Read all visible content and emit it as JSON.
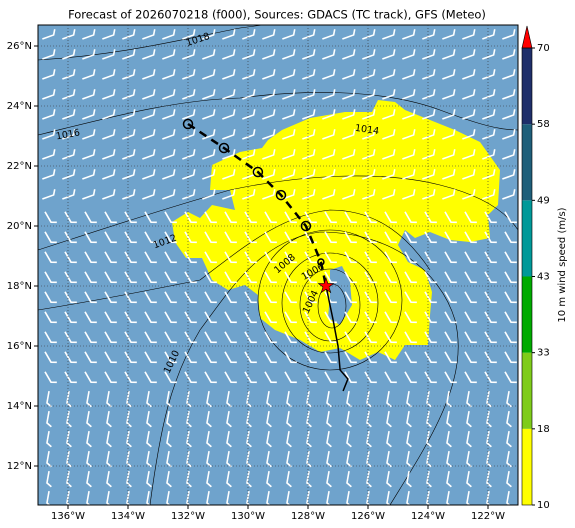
{
  "chart_data": {
    "type": "map",
    "title": "Forecast of 2026070218 (f000), Sources: GDACS (TC track), GFS (Meteo)",
    "xlim": [
      -137,
      -121
    ],
    "ylim": [
      10.7,
      26.7
    ],
    "xticks": [
      {
        "value": -136,
        "label": "136°W"
      },
      {
        "value": -134,
        "label": "134°W"
      },
      {
        "value": -132,
        "label": "132°W"
      },
      {
        "value": -130,
        "label": "130°W"
      },
      {
        "value": -128,
        "label": "128°W"
      },
      {
        "value": -126,
        "label": "126°W"
      },
      {
        "value": -124,
        "label": "124°W"
      },
      {
        "value": -122,
        "label": "122°W"
      }
    ],
    "yticks": [
      {
        "value": 12,
        "label": "12°N"
      },
      {
        "value": 14,
        "label": "14°N"
      },
      {
        "value": 16,
        "label": "16°N"
      },
      {
        "value": 18,
        "label": "18°N"
      },
      {
        "value": 20,
        "label": "20°N"
      },
      {
        "value": 22,
        "label": "22°N"
      },
      {
        "value": 24,
        "label": "24°N"
      },
      {
        "value": 26,
        "label": "26°N"
      }
    ],
    "grid": true,
    "track": {
      "lon": [
        -132.0,
        -130.8,
        -129.67,
        -128.9,
        -128.07,
        -127.57
      ],
      "lat": [
        23.4,
        22.6,
        21.8,
        21.03,
        20.0,
        18.8
      ],
      "color": "#000000"
    },
    "current_position": {
      "lon": -127.4,
      "lat": 18.0,
      "color": "#ff0000"
    },
    "forecast_track": {
      "lon": [
        -127.4,
        -127.17,
        -127.0,
        -126.93,
        -126.67,
        -126.83
      ],
      "lat": [
        18.0,
        16.9,
        16.0,
        15.2,
        14.9,
        14.5
      ],
      "color": "#000000"
    },
    "isobar_labels": [
      "1018",
      "1016",
      "1014",
      "1012",
      "1010",
      "1008",
      "1006",
      "1004"
    ],
    "colorbar": {
      "label": "10 m wind speed (m/s)",
      "levels": [
        10,
        18,
        33,
        43,
        49,
        58,
        70
      ],
      "colors": [
        "#ffff00",
        "#7fcc1a",
        "#00aa00",
        "#009999",
        "#1f5f7a",
        "#1f2f6a"
      ],
      "extend_color": "#ff0000"
    }
  }
}
